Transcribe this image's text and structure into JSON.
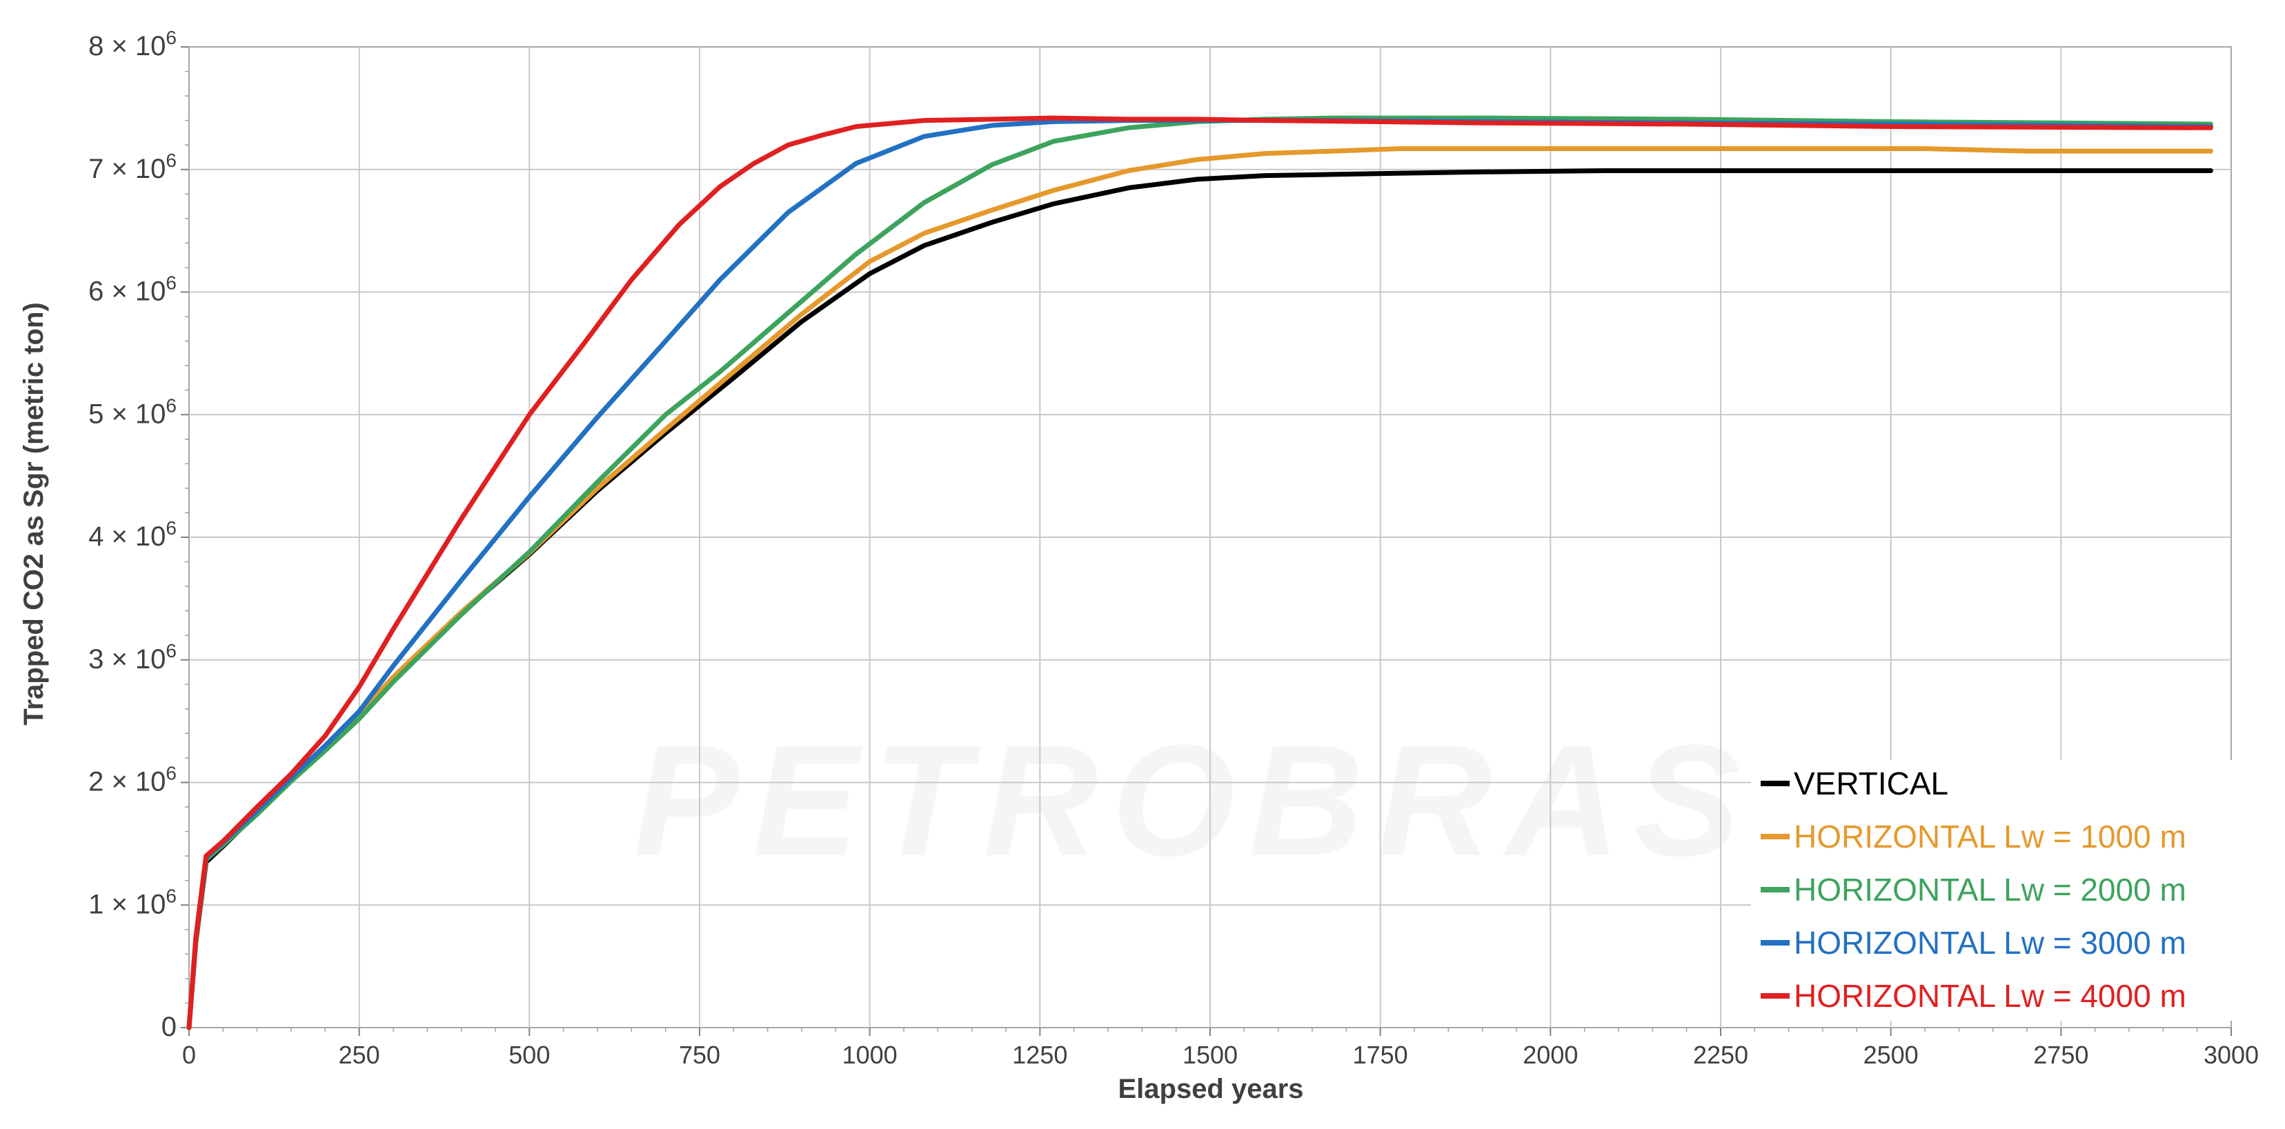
{
  "chart_data": {
    "type": "line",
    "title": "",
    "xlabel": "Elapsed years",
    "ylabel": "Trapped CO2 as Sgr (metric ton)",
    "xlim": [
      0,
      3000
    ],
    "ylim": [
      0,
      8000000
    ],
    "x_ticks": [
      0,
      250,
      500,
      750,
      1000,
      1250,
      1500,
      1750,
      2000,
      2250,
      2500,
      2750,
      3000
    ],
    "x_tick_labels": [
      "0",
      "250",
      "500",
      "750",
      "1000",
      "1250",
      "1500",
      "1750",
      "2000",
      "2250",
      "2500",
      "2750",
      "3000"
    ],
    "y_ticks": [
      0,
      1000000,
      2000000,
      3000000,
      4000000,
      5000000,
      6000000,
      7000000,
      8000000
    ],
    "y_tick_labels": [
      {
        "base": "0",
        "exp": ""
      },
      {
        "base": "1 × 10",
        "exp": "6"
      },
      {
        "base": "2 × 10",
        "exp": "6"
      },
      {
        "base": "3 × 10",
        "exp": "6"
      },
      {
        "base": "4 × 10",
        "exp": "6"
      },
      {
        "base": "5 × 10",
        "exp": "6"
      },
      {
        "base": "6 × 10",
        "exp": "6"
      },
      {
        "base": "7 × 10",
        "exp": "6"
      },
      {
        "base": "8 × 10",
        "exp": "6"
      }
    ],
    "grid": true,
    "legend_position": "bottom-right",
    "watermark": "PETROBRAS",
    "series": [
      {
        "name": "VERTICAL",
        "color": "#000000",
        "x": [
          0,
          10,
          25,
          50,
          100,
          150,
          200,
          250,
          300,
          400,
          500,
          600,
          700,
          800,
          900,
          1000,
          1080,
          1180,
          1270,
          1380,
          1480,
          1580,
          1680,
          1780,
          1900,
          2080,
          2200,
          2500,
          2700,
          2970
        ],
        "y": [
          0,
          700000,
          1350000,
          1480000,
          1750000,
          2020000,
          2280000,
          2550000,
          2850000,
          3380000,
          3860000,
          4380000,
          4850000,
          5300000,
          5760000,
          6150000,
          6380000,
          6570000,
          6720000,
          6850000,
          6920000,
          6950000,
          6960000,
          6970000,
          6980000,
          6990000,
          6990000,
          6990000,
          6990000,
          6990000
        ]
      },
      {
        "name": "HORIZONTAL Lw = 1000 m",
        "color": "#E5992C",
        "x": [
          0,
          10,
          25,
          50,
          100,
          150,
          200,
          250,
          300,
          400,
          500,
          600,
          700,
          800,
          900,
          1000,
          1080,
          1180,
          1270,
          1380,
          1480,
          1580,
          1680,
          1780,
          1900,
          2200,
          2550,
          2700,
          2970
        ],
        "y": [
          0,
          720000,
          1380000,
          1500000,
          1760000,
          2030000,
          2290000,
          2560000,
          2860000,
          3390000,
          3870000,
          4400000,
          4880000,
          5350000,
          5820000,
          6250000,
          6480000,
          6670000,
          6830000,
          6990000,
          7080000,
          7130000,
          7150000,
          7170000,
          7170000,
          7170000,
          7170000,
          7150000,
          7150000
        ]
      },
      {
        "name": "HORIZONTAL Lw = 2000 m",
        "color": "#3DA35D",
        "x": [
          0,
          10,
          25,
          50,
          100,
          150,
          200,
          250,
          300,
          400,
          500,
          600,
          700,
          780,
          880,
          980,
          1080,
          1180,
          1270,
          1380,
          1480,
          1580,
          1680,
          1900,
          2200,
          2500,
          2970
        ],
        "y": [
          0,
          720000,
          1370000,
          1490000,
          1740000,
          2010000,
          2260000,
          2520000,
          2820000,
          3370000,
          3880000,
          4450000,
          5000000,
          5350000,
          5830000,
          6310000,
          6730000,
          7040000,
          7230000,
          7340000,
          7390000,
          7410000,
          7420000,
          7420000,
          7410000,
          7390000,
          7370000
        ]
      },
      {
        "name": "HORIZONTAL Lw = 3000 m",
        "color": "#2271C3",
        "x": [
          0,
          10,
          25,
          50,
          100,
          150,
          200,
          250,
          300,
          400,
          500,
          600,
          700,
          780,
          880,
          980,
          1080,
          1180,
          1270,
          1380,
          1480,
          1580,
          1680,
          1900,
          2200,
          2500,
          2970
        ],
        "y": [
          0,
          730000,
          1390000,
          1510000,
          1770000,
          2040000,
          2300000,
          2580000,
          2950000,
          3650000,
          4330000,
          4980000,
          5600000,
          6100000,
          6650000,
          7050000,
          7270000,
          7360000,
          7390000,
          7400000,
          7400000,
          7400000,
          7400000,
          7390000,
          7380000,
          7370000,
          7350000
        ]
      },
      {
        "name": "HORIZONTAL Lw = 4000 m",
        "color": "#E02020",
        "x": [
          0,
          10,
          25,
          50,
          100,
          150,
          200,
          250,
          300,
          400,
          500,
          580,
          650,
          720,
          780,
          830,
          880,
          930,
          980,
          1080,
          1180,
          1270,
          1380,
          1480,
          1580,
          1900,
          2200,
          2500,
          2970
        ],
        "y": [
          0,
          740000,
          1400000,
          1520000,
          1800000,
          2070000,
          2380000,
          2780000,
          3250000,
          4150000,
          5000000,
          5580000,
          6100000,
          6550000,
          6860000,
          7050000,
          7200000,
          7280000,
          7350000,
          7400000,
          7410000,
          7420000,
          7410000,
          7410000,
          7400000,
          7380000,
          7370000,
          7350000,
          7340000
        ]
      }
    ]
  }
}
